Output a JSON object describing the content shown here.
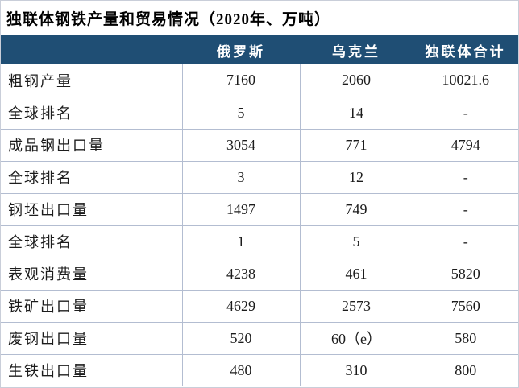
{
  "title": "独联体钢铁产量和贸易情况（2020年、万吨）",
  "chart_data": {
    "type": "table",
    "title": "独联体钢铁产量和贸易情况（2020年、万吨）",
    "unit": "万吨",
    "year": "2020",
    "columns": [
      "",
      "俄罗斯",
      "乌克兰",
      "独联体合计"
    ],
    "rows": [
      {
        "label": "粗钢产量",
        "values": [
          "7160",
          "2060",
          "10021.6"
        ]
      },
      {
        "label": "全球排名",
        "values": [
          "5",
          "14",
          "-"
        ]
      },
      {
        "label": "成品钢出口量",
        "values": [
          "3054",
          "771",
          "4794"
        ]
      },
      {
        "label": "全球排名",
        "values": [
          "3",
          "12",
          "-"
        ]
      },
      {
        "label": "钢坯出口量",
        "values": [
          "1497",
          "749",
          "-"
        ]
      },
      {
        "label": "全球排名",
        "values": [
          "1",
          "5",
          "-"
        ]
      },
      {
        "label": "表观消费量",
        "values": [
          "4238",
          "461",
          "5820"
        ]
      },
      {
        "label": "铁矿出口量",
        "values": [
          "4629",
          "2573",
          "7560"
        ]
      },
      {
        "label": "废钢出口量",
        "values": [
          "520",
          "60（e）",
          "580"
        ]
      },
      {
        "label": "生铁出口量",
        "values": [
          "480",
          "310",
          "800"
        ]
      }
    ]
  },
  "colors": {
    "header_bg": "#1f4e74",
    "header_text": "#ffffff",
    "grid_line": "#b3bdd1",
    "outer_border": "#c9ced9",
    "body_text": "#1c1c1c",
    "title_text": "#000000"
  }
}
